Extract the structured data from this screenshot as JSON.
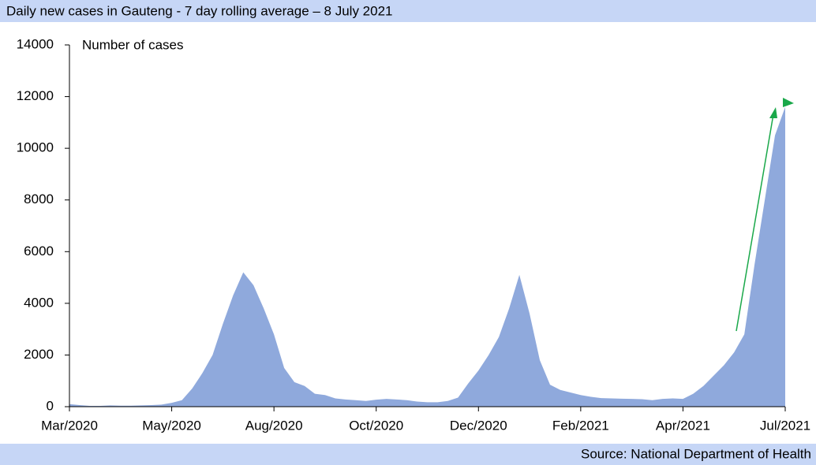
{
  "chart_data": {
    "type": "area",
    "title": "Daily new cases in Gauteng - 7 day rolling average – 8 July 2021",
    "y_label": "Number of cases",
    "source": "Source: National Department of Health",
    "categories": [
      "Mar/2020",
      null,
      null,
      null,
      null,
      null,
      null,
      null,
      null,
      null,
      "May/2020",
      null,
      null,
      null,
      null,
      null,
      null,
      null,
      null,
      null,
      "Aug/2020",
      null,
      null,
      null,
      null,
      null,
      null,
      null,
      null,
      null,
      "Oct/2020",
      null,
      null,
      null,
      null,
      null,
      null,
      null,
      null,
      null,
      "Dec/2020",
      null,
      null,
      null,
      null,
      null,
      null,
      null,
      null,
      null,
      "Feb/2021",
      null,
      null,
      null,
      null,
      null,
      null,
      null,
      null,
      null,
      "Apr/2021",
      null,
      null,
      null,
      null,
      null,
      null,
      null,
      null,
      null,
      "Jul/2021"
    ],
    "series": [
      {
        "name": "Daily new cases",
        "color": "#8fa9dc",
        "values": [
          100,
          60,
          30,
          30,
          50,
          40,
          40,
          50,
          60,
          80,
          150,
          250,
          700,
          1300,
          2000,
          3200,
          4300,
          5200,
          4700,
          3800,
          2800,
          1500,
          950,
          800,
          500,
          450,
          320,
          280,
          250,
          220,
          270,
          300,
          280,
          250,
          200,
          170,
          170,
          220,
          350,
          900,
          1400,
          2000,
          2700,
          3800,
          5100,
          3600,
          1800,
          850,
          650,
          550,
          450,
          380,
          330,
          320,
          310,
          300,
          290,
          250,
          300,
          320,
          300,
          500,
          800,
          1200,
          1600,
          2100,
          2800,
          5500,
          8000,
          10500,
          11600
        ]
      }
    ],
    "ylim": [
      0,
      14000
    ],
    "yticks": [
      0,
      2000,
      4000,
      6000,
      8000,
      10000,
      12000,
      14000
    ]
  }
}
